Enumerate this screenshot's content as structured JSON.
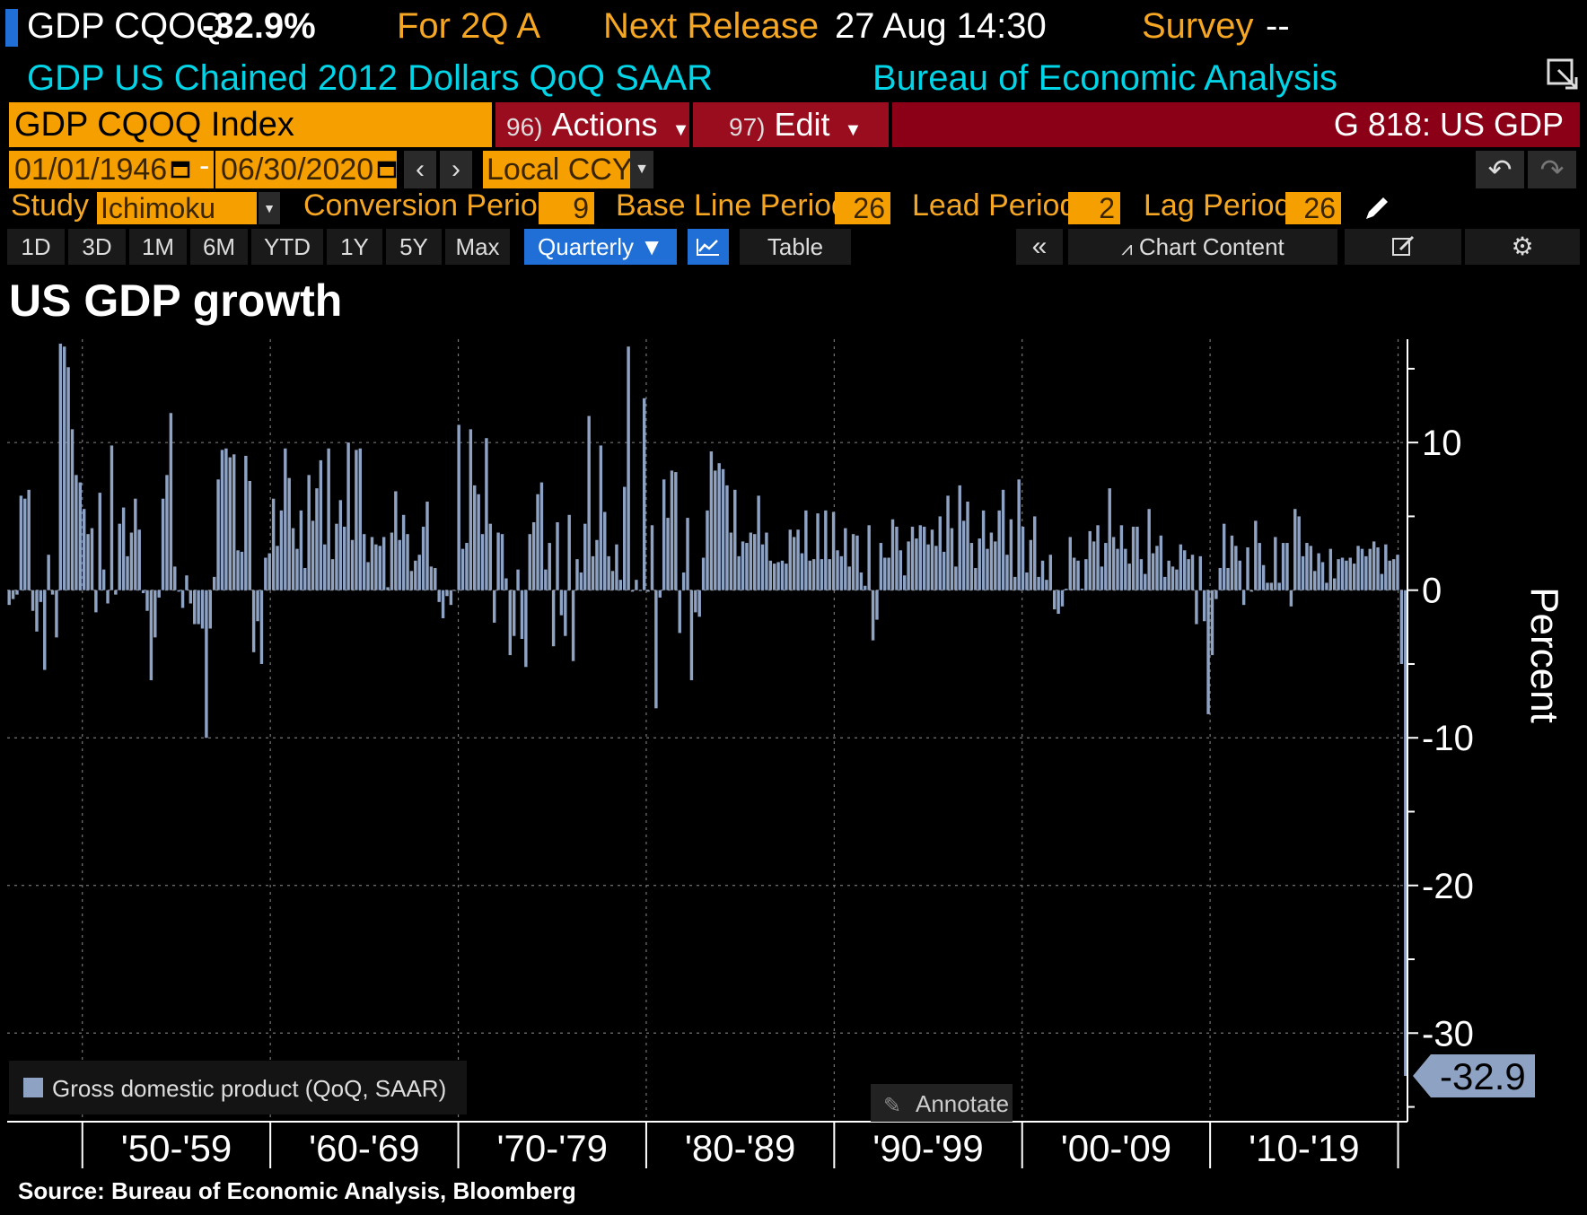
{
  "header": {
    "ticker": "GDP CQOQ",
    "last_value": "-32.9%",
    "period_label": "For 2Q A",
    "next_release_label": "Next Release",
    "next_release_value": "27 Aug 14:30",
    "survey_label": "Survey",
    "survey_value": "--",
    "description": "GDP US Chained 2012 Dollars QoQ SAAR",
    "source_agency": "Bureau of Economic Analysis"
  },
  "security_bar": {
    "security": "GDP CQOQ Index",
    "actions_num": "96)",
    "actions_label": "Actions",
    "edit_num": "97)",
    "edit_label": "Edit",
    "chart_id": "G 818: US GDP"
  },
  "date_bar": {
    "start_date": "01/01/1946",
    "separator": "-",
    "end_date": "06/30/2020",
    "currency": "Local CCY"
  },
  "study_bar": {
    "study_label": "Study",
    "study_value": "Ichimoku",
    "conversion_label": "Conversion Period",
    "conversion_value": "9",
    "baseline_label": "Base Line Period",
    "baseline_value": "26",
    "lead_label": "Lead Period",
    "lead_value": "2",
    "lag_label": "Lag Period",
    "lag_value": "26"
  },
  "toolbar": {
    "ranges": [
      "1D",
      "3D",
      "1M",
      "6M",
      "YTD",
      "1Y",
      "5Y",
      "Max"
    ],
    "frequency": "Quarterly",
    "table_label": "Table",
    "chart_content_label": "Chart Content"
  },
  "colors": {
    "bar": "#8ea3c4",
    "background": "#000000",
    "amber": "#f5a000",
    "grid": "#777777"
  },
  "chart_data": {
    "type": "bar",
    "title": "US GDP growth",
    "ylabel": "Percent",
    "ylim": [
      -36,
      17
    ],
    "yticks": [
      10,
      0,
      -10,
      -20,
      -30
    ],
    "x_start": 1946.0,
    "x_end": 2020.5,
    "x_decade_labels": [
      "'50-'59",
      "'60-'69",
      "'70-'79",
      "'80-'89",
      "'90-'99",
      "'00-'09",
      "'10-'19"
    ],
    "legend": "Gross domestic product (QoQ, SAAR)",
    "last_value_label": "-32.9",
    "annotate_label": "Annotate",
    "source": "Source: Bureau of Economic Analysis, Bloomberg",
    "grid": true,
    "series": [
      {
        "name": "Gross domestic product (QoQ, SAAR)",
        "values": [
          -1.0,
          -0.6,
          -0.3,
          6.4,
          6.2,
          6.8,
          -1.4,
          -2.8,
          -0.8,
          -5.4,
          2.4,
          -0.3,
          -3.2,
          16.7,
          16.5,
          15.1,
          10.9,
          7.8,
          7.3,
          5.5,
          3.8,
          4.2,
          -1.5,
          6.6,
          1.4,
          -0.9,
          9.8,
          -0.3,
          4.5,
          5.6,
          2.3,
          3.9,
          6.2,
          4.1,
          -0.2,
          -1.4,
          -6.1,
          -3.2,
          -0.5,
          6.2,
          7.8,
          12.0,
          1.6,
          -0.1,
          -1.2,
          1.0,
          -0.9,
          -2.3,
          -2.3,
          -2.6,
          -10.0,
          -2.6,
          0.9,
          7.5,
          9.5,
          9.6,
          9.0,
          9.2,
          2.7,
          2.6,
          9.1,
          7.4,
          -4.2,
          -2.1,
          -5.0,
          2.2,
          2.5,
          6.2,
          3.0,
          5.4,
          9.6,
          7.6,
          4.2,
          2.8,
          5.4,
          1.5,
          7.8,
          4.7,
          6.9,
          8.8,
          3.1,
          9.6,
          2.1,
          4.5,
          6.1,
          4.3,
          10.0,
          3.4,
          9.5,
          9.6,
          3.8,
          1.9,
          3.6,
          3.1,
          3.0,
          3.6,
          0.2,
          3.9,
          6.7,
          3.4,
          5.1,
          3.8,
          1.3,
          2.0,
          2.4,
          4.3,
          6.0,
          1.6,
          1.5,
          -0.8,
          -1.9,
          -0.4,
          -1.0,
          0.0,
          11.2,
          2.8,
          3.2,
          10.9,
          7.1,
          6.5,
          3.8,
          10.3,
          4.5,
          -2.2,
          3.9,
          3.8,
          0.8,
          -4.4,
          -3.1,
          1.4,
          -3.3,
          -5.2,
          3.8,
          4.6,
          6.5,
          7.3,
          1.4,
          3.2,
          -3.8,
          4.6,
          -1.7,
          -3.1,
          5.1,
          -4.8,
          2.1,
          1.2,
          4.5,
          11.8,
          2.3,
          3.4,
          9.8,
          5.3,
          2.3,
          1.3,
          3.1,
          0.7,
          7.0,
          16.5,
          -0.1,
          0.7,
          0.0,
          13.0,
          -0.1,
          4.4,
          -8.0,
          -0.5,
          7.5,
          4.9,
          8.1,
          8.0,
          -2.9,
          1.2,
          4.9,
          -6.1,
          -1.5,
          -1.8,
          2.2,
          5.4,
          9.4,
          8.1,
          8.6,
          8.2,
          7.1,
          3.9,
          6.8,
          2.3,
          3.3,
          3.2,
          3.9,
          3.8,
          6.4,
          3.1,
          3.9,
          2.0,
          1.8,
          1.9,
          2.0,
          1.8,
          4.1,
          3.6,
          4.1,
          2.5,
          5.4,
          2.0,
          2.1,
          5.2,
          2.1,
          5.4,
          2.1,
          5.3,
          2.7,
          2.3,
          4.2,
          1.6,
          3.8,
          3.7,
          1.2,
          0.3,
          4.4,
          -3.4,
          -2.0,
          3.2,
          2.2,
          2.2,
          4.8,
          4.3,
          2.7,
          1.0,
          3.3,
          4.3,
          3.5,
          4.4,
          4.3,
          3.1,
          4.1,
          3.0,
          5.0,
          2.6,
          6.4,
          4.2,
          1.6,
          7.1,
          4.7,
          6.0,
          3.2,
          1.5,
          3.5,
          5.4,
          2.8,
          3.9,
          3.3,
          5.4,
          6.8,
          2.4,
          4.8,
          0.9,
          7.5,
          4.3,
          1.2,
          3.4,
          5.0,
          0.9,
          2.0,
          0.7,
          2.4,
          -1.3,
          -1.6,
          -1.1,
          0.1,
          3.6,
          2.2,
          2.0,
          0.1,
          2.1,
          4.0,
          3.3,
          4.4,
          1.6,
          3.2,
          6.9,
          3.6,
          2.8,
          4.4,
          2.8,
          1.8,
          4.3,
          4.3,
          2.1,
          1.1,
          5.5,
          2.5,
          3.0,
          3.7,
          0.9,
          2.0,
          1.6,
          1.4,
          3.1,
          2.7,
          2.1,
          2.4,
          -2.3,
          2.3,
          -2.1,
          -8.4,
          -4.4,
          -0.6,
          1.5,
          4.5,
          1.5,
          3.7,
          3.0,
          2.0,
          -1.0,
          2.9,
          -0.1,
          4.7,
          3.2,
          1.7,
          0.5,
          0.5,
          3.6,
          0.5,
          3.2,
          3.2,
          -1.1,
          5.5,
          5.0,
          2.3,
          3.2,
          3.0,
          1.3,
          2.5,
          1.9,
          0.5,
          2.8,
          0.8,
          2.1,
          2.2,
          2.0,
          2.2,
          1.8,
          3.0,
          2.8,
          2.3,
          2.8,
          3.3,
          2.9,
          1.1,
          3.1,
          2.0,
          2.1,
          2.4,
          -5.0,
          -32.9
        ]
      }
    ]
  }
}
